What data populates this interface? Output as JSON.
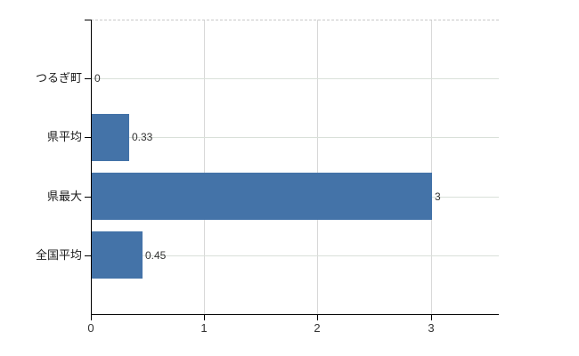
{
  "chart_data": {
    "type": "bar",
    "orientation": "horizontal",
    "title": "",
    "xlabel": "",
    "ylabel": "",
    "categories": [
      "つるぎ町",
      "県平均",
      "県最大",
      "全国平均"
    ],
    "values": [
      0,
      0.33,
      3,
      0.45
    ],
    "value_labels": [
      "0",
      "0.33",
      "3",
      "0.45"
    ],
    "x_ticks": [
      0,
      1,
      2,
      3
    ],
    "x_tick_labels": [
      "0",
      "1",
      "2",
      "3"
    ],
    "xlim": [
      0,
      3.6
    ],
    "grid": true,
    "legend_position": "none",
    "colors": {
      "bar": "#4473a8",
      "h_gridline": "#d9e0d9",
      "v_gridline": "#d8d8d8",
      "top_dashed_line": "#c9c9c9",
      "axis": "#000000",
      "background": "#ffffff"
    }
  }
}
